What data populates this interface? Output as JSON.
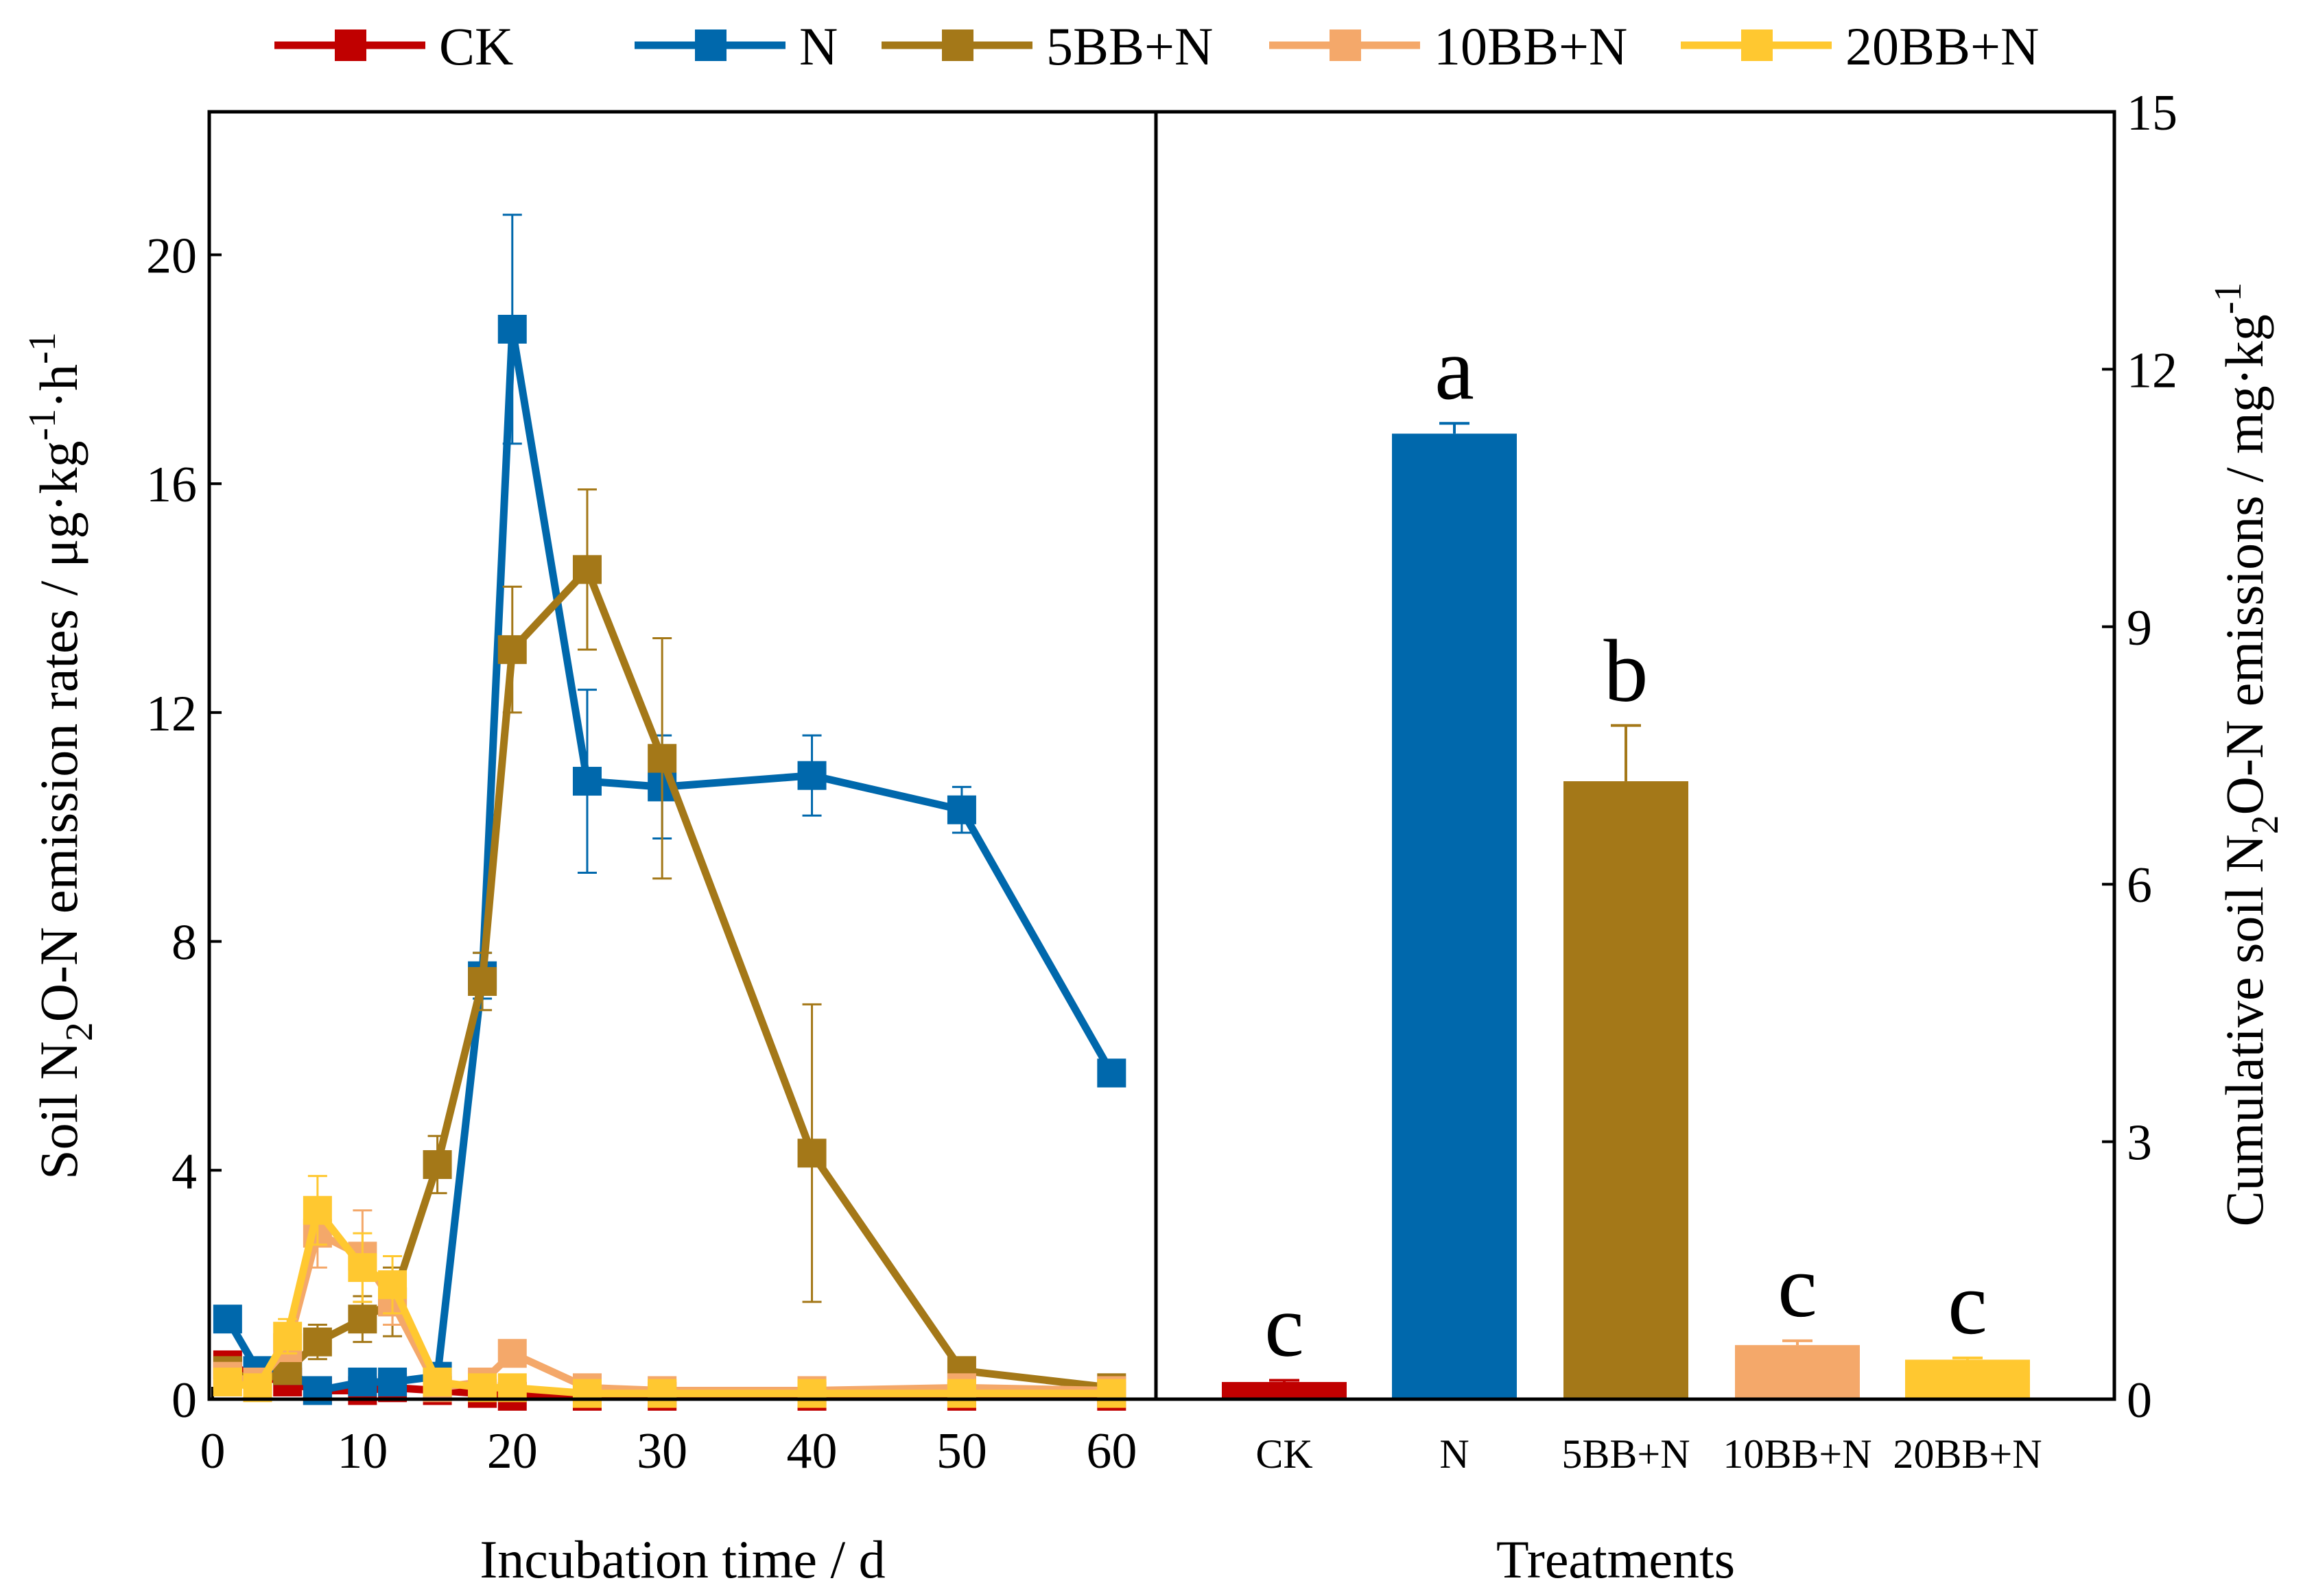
{
  "chart_data": [
    {
      "type": "line",
      "panel": "left",
      "xlabel": "Incubation time / d",
      "ylabel_parts": [
        "Soil N",
        "2",
        "O-N emission rates / μg·kg",
        "-1",
        "·h",
        "-1"
      ],
      "xlim": [
        0,
        62
      ],
      "ylim": [
        0,
        22.5
      ],
      "xticks": [
        0,
        10,
        20,
        30,
        40,
        50,
        60
      ],
      "xtick_labels": [
        "0",
        "10",
        "20",
        "30",
        "40",
        "50",
        "60"
      ],
      "yticks": [
        0,
        4,
        8,
        12,
        16,
        20
      ],
      "ytick_labels": [
        "0",
        "4",
        "8",
        "12",
        "16",
        "20"
      ],
      "grid": false,
      "series": [
        {
          "name": "CK",
          "color": "#C00000",
          "x": [
            1,
            3,
            5,
            7,
            10,
            12,
            15,
            18,
            20,
            25,
            30,
            40,
            50,
            60
          ],
          "y": [
            0.6,
            0.4,
            0.3,
            0.15,
            0.15,
            0.2,
            0.15,
            0.1,
            0.05,
            0.05,
            0.05,
            0.05,
            0.05,
            0.05
          ],
          "err": [
            0.2,
            0.1,
            0.1,
            0.05,
            0.05,
            0.05,
            0.05,
            0.05,
            0.05,
            0.05,
            0.05,
            0.05,
            0.05,
            0.05
          ]
        },
        {
          "name": "N",
          "color": "#0068AC",
          "x": [
            1,
            3,
            5,
            7,
            10,
            12,
            15,
            18,
            20,
            25,
            30,
            40,
            50,
            60
          ],
          "y": [
            1.4,
            0.5,
            0.5,
            0.15,
            0.3,
            0.3,
            0.4,
            7.4,
            18.7,
            10.8,
            10.7,
            10.9,
            10.3,
            5.7
          ],
          "err": [
            0.2,
            0.1,
            0.1,
            0.05,
            0.1,
            0.1,
            0.1,
            0.4,
            2.0,
            1.6,
            0.9,
            0.7,
            0.4,
            0.2
          ]
        },
        {
          "name": "5BB+N",
          "color": "#A47818",
          "x": [
            1,
            3,
            5,
            7,
            10,
            12,
            15,
            18,
            20,
            25,
            30,
            40,
            50,
            60
          ],
          "y": [
            0.5,
            0.3,
            0.5,
            1.0,
            1.4,
            1.7,
            4.1,
            7.3,
            13.1,
            14.5,
            11.2,
            4.3,
            0.5,
            0.2
          ],
          "err": [
            0.1,
            0.1,
            0.2,
            0.3,
            0.4,
            0.6,
            0.5,
            0.5,
            1.1,
            1.4,
            2.1,
            2.6,
            0.1,
            0.05
          ]
        },
        {
          "name": "10BB+N",
          "color": "#F4A86A",
          "x": [
            1,
            3,
            5,
            7,
            10,
            12,
            15,
            18,
            20,
            25,
            30,
            40,
            50,
            60
          ],
          "y": [
            0.4,
            0.3,
            0.9,
            2.9,
            2.5,
            1.7,
            0.2,
            0.3,
            0.8,
            0.2,
            0.15,
            0.15,
            0.2,
            0.15
          ],
          "err": [
            0.1,
            0.1,
            0.2,
            0.6,
            0.8,
            0.4,
            0.05,
            0.1,
            0.2,
            0.05,
            0.05,
            0.05,
            0.1,
            0.05
          ]
        },
        {
          "name": "20BB+N",
          "color": "#FFC830",
          "x": [
            1,
            3,
            5,
            7,
            10,
            12,
            15,
            18,
            20,
            25,
            30,
            40,
            50,
            60
          ],
          "y": [
            0.3,
            0.2,
            1.1,
            3.3,
            2.3,
            2.0,
            0.3,
            0.2,
            0.2,
            0.1,
            0.1,
            0.1,
            0.1,
            0.1
          ],
          "err": [
            0.1,
            0.1,
            0.3,
            0.6,
            0.6,
            0.5,
            0.1,
            0.05,
            0.05,
            0.05,
            0.05,
            0.05,
            0.05,
            0.05
          ]
        }
      ]
    },
    {
      "type": "bar",
      "panel": "right",
      "xlabel": "Treatments",
      "ylabel_parts": [
        "Cumulative soil N",
        "2",
        "O-N emissions / mg·kg",
        "-1"
      ],
      "ylim": [
        0,
        15
      ],
      "yticks": [
        0,
        3,
        6,
        9,
        12,
        15
      ],
      "ytick_labels": [
        "0",
        "3",
        "6",
        "9",
        "12",
        "15"
      ],
      "categories": [
        "CK",
        "N",
        "5BB+N",
        "10BB+N",
        "20BB+N"
      ],
      "values": [
        0.2,
        11.25,
        7.2,
        0.63,
        0.46
      ],
      "errors": [
        0.02,
        0.12,
        0.65,
        0.05,
        0.02
      ],
      "letters": [
        "c",
        "a",
        "b",
        "c",
        "c"
      ],
      "colors": [
        "#C00000",
        "#0068AC",
        "#A47818",
        "#F4A86A",
        "#FFC830"
      ]
    }
  ],
  "legend": {
    "placement": "top",
    "entries": [
      "CK",
      "N",
      "5BB+N",
      "10BB+N",
      "20BB+N"
    ]
  }
}
